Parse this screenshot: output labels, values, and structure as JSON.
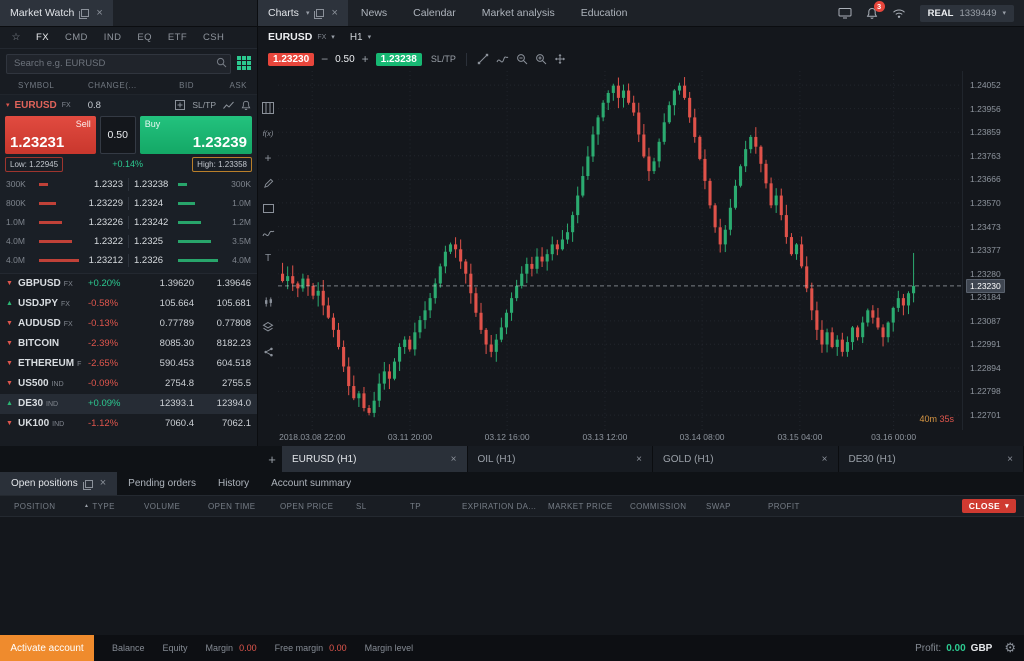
{
  "colors": {
    "accent_red": "#e8463c",
    "accent_green": "#17b873",
    "teal": "#2cc990",
    "orange": "#ef8b2d",
    "candle_up": "#2bab70",
    "candle_down": "#e0524a"
  },
  "top_bar": {
    "market_watch_tab": "Market Watch",
    "charts_tab": "Charts",
    "nav_tabs": [
      "News",
      "Calendar",
      "Market analysis",
      "Education"
    ],
    "notification_count": "3",
    "account_type": "REAL",
    "account_number": "1339449"
  },
  "market_watch": {
    "category_tabs": [
      "FX",
      "CMD",
      "IND",
      "EQ",
      "ETF",
      "CSH"
    ],
    "search_placeholder": "Search e.g. EURUSD",
    "columns": [
      "SYMBOL",
      "CHANGE(...",
      "BID",
      "ASK"
    ],
    "expanded": {
      "symbol": "EURUSD",
      "tag": "FX",
      "spread": "0.8",
      "sltp_label": "SL/TP",
      "sell_label": "Sell",
      "buy_label": "Buy",
      "sell_price": "1.23231",
      "buy_price": "1.23239",
      "volume": "0.50",
      "low_label": "Low: 1.22945",
      "high_label": "High: 1.23358",
      "change": "+0.14%"
    },
    "ladder": [
      {
        "lvol": "300K",
        "bid": "1.2323",
        "ask": "1.23238",
        "rvol": "300K",
        "depth": 0.22
      },
      {
        "lvol": "800K",
        "bid": "1.23229",
        "ask": "1.2324",
        "rvol": "1.0M",
        "depth": 0.42
      },
      {
        "lvol": "1.0M",
        "bid": "1.23226",
        "ask": "1.23242",
        "rvol": "1.2M",
        "depth": 0.58
      },
      {
        "lvol": "4.0M",
        "bid": "1.2322",
        "ask": "1.2325",
        "rvol": "3.5M",
        "depth": 0.82
      },
      {
        "lvol": "4.0M",
        "bid": "1.23212",
        "ask": "1.2326",
        "rvol": "4.0M",
        "depth": 1.0
      }
    ],
    "symbols": [
      {
        "dir": "down",
        "name": "GBPUSD",
        "tag": "FX",
        "change": "+0.20%",
        "up": true,
        "bid": "1.39620",
        "ask": "1.39646",
        "selected": false
      },
      {
        "dir": "up",
        "name": "USDJPY",
        "tag": "FX",
        "change": "-0.58%",
        "up": false,
        "bid": "105.664",
        "ask": "105.681",
        "selected": false
      },
      {
        "dir": "down",
        "name": "AUDUSD",
        "tag": "FX",
        "change": "-0.13%",
        "up": false,
        "bid": "0.77789",
        "ask": "0.77808",
        "selected": false
      },
      {
        "dir": "down",
        "name": "BITCOIN",
        "tag": "",
        "change": "-2.39%",
        "up": false,
        "bid": "8085.30",
        "ask": "8182.23",
        "selected": false
      },
      {
        "dir": "down",
        "name": "ETHEREUM",
        "tag": "F",
        "change": "-2.65%",
        "up": false,
        "bid": "590.453",
        "ask": "604.518",
        "selected": false
      },
      {
        "dir": "down",
        "name": "US500",
        "tag": "IND",
        "change": "-0.09%",
        "up": false,
        "bid": "2754.8",
        "ask": "2755.5",
        "selected": false
      },
      {
        "dir": "up",
        "name": "DE30",
        "tag": "IND",
        "change": "+0.09%",
        "up": true,
        "bid": "12393.1",
        "ask": "12394.0",
        "selected": true
      },
      {
        "dir": "down",
        "name": "UK100",
        "tag": "IND",
        "change": "-1.12%",
        "up": false,
        "bid": "7060.4",
        "ask": "7062.1",
        "selected": false
      }
    ]
  },
  "chart": {
    "symbol": "EURUSD",
    "tag": "FX",
    "timeframe": "H1",
    "sell_price": "1.23230",
    "buy_price": "1.23238",
    "volume": "0.50",
    "sltp_label": "SL/TP",
    "current_price": "1.23230",
    "countdown": {
      "minutes": "40m",
      "seconds": "35s"
    },
    "chart_data": {
      "type": "candlestick",
      "title": "EURUSD (H1)",
      "axis_min": 1.2264,
      "axis_max": 1.2411,
      "current_price": 1.2323,
      "y_ticks": [
        "1.24052",
        "1.23956",
        "1.23859",
        "1.23763",
        "1.23666",
        "1.23570",
        "1.23473",
        "1.23377",
        "1.23280",
        "1.23184",
        "1.23087",
        "1.22991",
        "1.22894",
        "1.22798",
        "1.22701"
      ],
      "x_labels": [
        {
          "label": "2018.03.08 22:00",
          "pos": 0.05
        },
        {
          "label": "03.11 20:00",
          "pos": 0.193
        },
        {
          "label": "03.12 16:00",
          "pos": 0.335
        },
        {
          "label": "03.13 12:00",
          "pos": 0.478
        },
        {
          "label": "03.14 08:00",
          "pos": 0.62
        },
        {
          "label": "03.15 04:00",
          "pos": 0.763
        },
        {
          "label": "03.16 00:00",
          "pos": 0.9
        }
      ],
      "first_open": 1.2328,
      "closes": [
        1.2325,
        1.2327,
        1.2324,
        1.2322,
        1.2326,
        1.2323,
        1.2319,
        1.2321,
        1.2315,
        1.231,
        1.2305,
        1.2298,
        1.229,
        1.2282,
        1.2277,
        1.2279,
        1.2273,
        1.2271,
        1.2276,
        1.2283,
        1.2288,
        1.2285,
        1.2292,
        1.2298,
        1.2301,
        1.2297,
        1.2304,
        1.2309,
        1.2313,
        1.2318,
        1.2324,
        1.2331,
        1.2337,
        1.234,
        1.2338,
        1.2333,
        1.2328,
        1.232,
        1.2312,
        1.2305,
        1.2299,
        1.2296,
        1.2301,
        1.2306,
        1.2312,
        1.2318,
        1.2323,
        1.2328,
        1.2332,
        1.233,
        1.2335,
        1.2333,
        1.2336,
        1.234,
        1.2338,
        1.2342,
        1.2345,
        1.2352,
        1.236,
        1.2368,
        1.2376,
        1.2385,
        1.2392,
        1.2398,
        1.2402,
        1.2405,
        1.24,
        1.2403,
        1.2398,
        1.2394,
        1.2385,
        1.2376,
        1.237,
        1.2374,
        1.2382,
        1.239,
        1.2397,
        1.2403,
        1.2405,
        1.24,
        1.2392,
        1.2384,
        1.2375,
        1.2366,
        1.2356,
        1.2347,
        1.234,
        1.2346,
        1.2355,
        1.2364,
        1.2372,
        1.2379,
        1.2384,
        1.238,
        1.2373,
        1.2365,
        1.2356,
        1.236,
        1.2352,
        1.2343,
        1.2336,
        1.234,
        1.2331,
        1.2322,
        1.2313,
        1.2305,
        1.2299,
        1.2304,
        1.2298,
        1.2301,
        1.2296,
        1.23,
        1.2306,
        1.2302,
        1.2308,
        1.2313,
        1.231,
        1.2306,
        1.2302,
        1.2308,
        1.2314,
        1.2318,
        1.2315,
        1.232,
        1.2323
      ],
      "wick_overrides": {
        "17": {
          "low": 1.227
        },
        "41": {
          "low": 1.22938
        },
        "65": {
          "high": 1.24058
        },
        "78": {
          "high": 1.24062
        },
        "124": {
          "high": 1.23365
        }
      }
    }
  },
  "chart_tabs": {
    "add": "+",
    "tabs": [
      {
        "label": "EURUSD (H1)",
        "active": true
      },
      {
        "label": "OIL (H1)",
        "active": false
      },
      {
        "label": "GOLD (H1)",
        "active": false
      },
      {
        "label": "DE30 (H1)",
        "active": false
      }
    ]
  },
  "bottom": {
    "tabs": [
      {
        "label": "Open positions",
        "active": true
      },
      {
        "label": "Pending orders",
        "active": false
      },
      {
        "label": "History",
        "active": false
      },
      {
        "label": "Account summary",
        "active": false
      }
    ],
    "columns": [
      {
        "label": "POSITION",
        "sort": false
      },
      {
        "label": "TYPE",
        "sort": true
      },
      {
        "label": "VOLUME",
        "sort": false
      },
      {
        "label": "OPEN TIME",
        "sort": false
      },
      {
        "label": "OPEN PRICE",
        "sort": false
      },
      {
        "label": "SL",
        "sort": false
      },
      {
        "label": "TP",
        "sort": false
      },
      {
        "label": "EXPIRATION DA...",
        "sort": false
      },
      {
        "label": "MARKET PRICE",
        "sort": false
      },
      {
        "label": "COMMISSION",
        "sort": false
      },
      {
        "label": "SWAP",
        "sort": false
      },
      {
        "label": "PROFIT",
        "sort": false
      }
    ],
    "close_button": "CLOSE"
  },
  "status": {
    "activate": "Activate account",
    "fields": [
      {
        "label": "Balance",
        "value": "",
        "red": false
      },
      {
        "label": "Equity",
        "value": "",
        "red": false
      },
      {
        "label": "Margin",
        "value": "0.00",
        "red": true
      },
      {
        "label": "Free margin",
        "value": "0.00",
        "red": true
      },
      {
        "label": "Margin level",
        "value": "",
        "red": false
      }
    ],
    "profit_label": "Profit:",
    "profit_value": "0.00",
    "profit_currency": "GBP"
  }
}
